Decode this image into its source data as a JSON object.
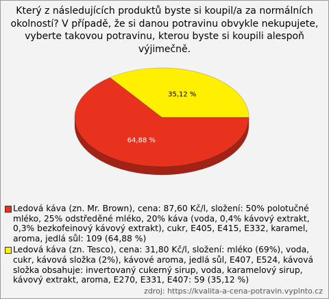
{
  "chart_data": {
    "type": "pie",
    "title": "Který z následujících produktů byste si koupil/a za normálních okolností? V případě, že si danou potravinu obvykle nekupujete, vyberte takovou potravinu, kterou byste si koupili alespoň výjimečně.",
    "categories": [
      "Ledová káva (zn. Mr. Brown), cena: 87,60 Kč/l, složení: 50% polotučné mléko, 25% odstředěné mléko, 20% káva (voda, 0,4% kávový extrakt, 0,3% bezkofeinový kávový extrakt), cukr, E405, E415, E332, karamel, aroma, jedlá sůl: 109 (64,88 %)",
      "Ledová káva (zn. Tesco), cena: 31,80 Kč/l, složení: mléko (69%), voda, cukr, kávová složka (2%), kávové aroma, jedlá sůl, E407, E524, kávová složka obsahuje: invertovaný cukerný sirup, voda, karamelový sirup, kávový extrakt, aroma, E270, E331, E407: 59 (35,12 %)"
    ],
    "values": [
      64.88,
      35.12
    ],
    "value_labels": [
      "64,88 %",
      "35,12 %"
    ],
    "colors": [
      "#e8321e",
      "#fff000"
    ],
    "source": "zdroj: https://kvalita-a-cena-potravin.vyplnto.cz"
  }
}
